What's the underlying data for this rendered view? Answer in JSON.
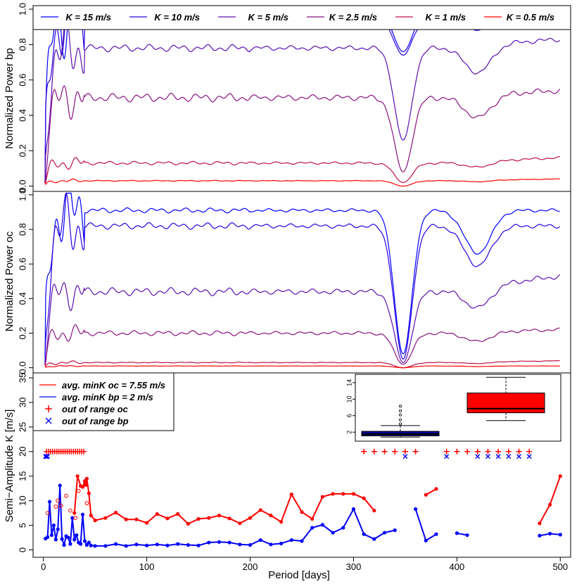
{
  "chart_data": [
    {
      "type": "line",
      "ylabel": "Normalized Power bp",
      "xlim": [
        -10,
        510
      ],
      "ylim": [
        -0.03,
        1.02
      ],
      "yticks": [
        "0.0",
        "0.2",
        "0.4",
        "0.6",
        "0.8",
        "1.0"
      ],
      "legend_position": "top",
      "series": [
        {
          "name": "K = 15 m/s",
          "color": "#0000ff",
          "plateau": 0.97,
          "dip": 0.76,
          "end": 0.98
        },
        {
          "name": "K = 10 m/s",
          "color": "#2a00e0",
          "plateau": 0.94,
          "dip": 0.74,
          "end": 0.95
        },
        {
          "name": "K = 5 m/s",
          "color": "#5a10b0",
          "plateau": 0.78,
          "dip": 0.26,
          "end": 0.83
        },
        {
          "name": "K = 2.5 m/s",
          "color": "#8a1080",
          "plateau": 0.5,
          "dip": 0.08,
          "end": 0.54
        },
        {
          "name": "K = 1 m/s",
          "color": "#c0104a",
          "plateau": 0.13,
          "dip": 0.02,
          "end": 0.16
        },
        {
          "name": "K = 0.5 m/s",
          "color": "#ff0000",
          "plateau": 0.03,
          "dip": 0.0,
          "end": 0.04
        }
      ]
    },
    {
      "type": "line",
      "ylabel": "Normalized Power oc",
      "xlim": [
        -10,
        510
      ],
      "ylim": [
        -0.03,
        1.02
      ],
      "yticks": [
        "0.0",
        "0.2",
        "0.4",
        "0.6",
        "0.8",
        "1.0"
      ],
      "series": [
        {
          "name": "K = 15 m/s",
          "color": "#0000ff",
          "plateau": 0.91,
          "dip": 0.08,
          "end": 0.91
        },
        {
          "name": "K = 10 m/s",
          "color": "#2a00e0",
          "plateau": 0.82,
          "dip": 0.05,
          "end": 0.82
        },
        {
          "name": "K = 5 m/s",
          "color": "#5a10b0",
          "plateau": 0.44,
          "dip": 0.03,
          "end": 0.53
        },
        {
          "name": "K = 2.5 m/s",
          "color": "#8a1080",
          "plateau": 0.2,
          "dip": 0.02,
          "end": 0.22
        },
        {
          "name": "K = 1 m/s",
          "color": "#c0104a",
          "plateau": 0.03,
          "dip": 0.0,
          "end": 0.04
        },
        {
          "name": "K = 0.5 m/s",
          "color": "#ff0000",
          "plateau": 0.01,
          "dip": 0.0,
          "end": 0.01
        }
      ]
    },
    {
      "type": "line",
      "xlabel": "Period [days]",
      "ylabel": "Semi−Amplitude K [m/s]",
      "xlim": [
        -10,
        510
      ],
      "ylim": [
        -1.5,
        36
      ],
      "xticks": [
        "0",
        "100",
        "200",
        "300",
        "400",
        "500"
      ],
      "yticks": [
        "0",
        "5",
        "10",
        "15",
        "20",
        "25",
        "30",
        "35"
      ],
      "legend_position": "top-left",
      "legend": [
        {
          "label": "avg. minK oc = 7.55 m/s",
          "symbol": "line",
          "color": "#ff0000"
        },
        {
          "label": "avg. minK bp = 2 m/s",
          "symbol": "line",
          "color": "#0000ff"
        },
        {
          "label": "out of range oc",
          "symbol": "+",
          "color": "#ff0000"
        },
        {
          "label": "out of range bp",
          "symbol": "x",
          "color": "#0000ff"
        }
      ],
      "oc_segments": [
        [
          [
            30,
            7.5
          ],
          [
            33,
            15
          ],
          [
            36,
            13
          ],
          [
            38,
            12.8
          ],
          [
            40,
            14
          ],
          [
            41,
            13.2
          ],
          [
            42,
            14.5
          ],
          [
            44,
            11.5
          ],
          [
            46,
            7
          ],
          [
            50,
            6
          ],
          [
            60,
            6.5
          ],
          [
            70,
            7.6
          ],
          [
            80,
            6.2
          ],
          [
            90,
            6.2
          ],
          [
            100,
            5.5
          ],
          [
            110,
            7.3
          ],
          [
            120,
            6.4
          ],
          [
            130,
            7.3
          ],
          [
            140,
            5.3
          ],
          [
            150,
            6.3
          ],
          [
            160,
            6.5
          ],
          [
            170,
            7
          ],
          [
            180,
            6.4
          ],
          [
            190,
            5.4
          ],
          [
            200,
            6.5
          ],
          [
            210,
            8.1
          ],
          [
            220,
            7
          ],
          [
            230,
            5.7
          ],
          [
            240,
            11.3
          ],
          [
            250,
            7.7
          ],
          [
            260,
            6.3
          ],
          [
            270,
            10.8
          ],
          [
            280,
            11.4
          ],
          [
            290,
            11.4
          ],
          [
            300,
            11.4
          ],
          [
            310,
            10.5
          ],
          [
            320,
            8
          ]
        ],
        [
          [
            370,
            11.2
          ],
          [
            380,
            12.4
          ]
        ],
        [
          [
            480,
            5.4
          ],
          [
            490,
            9.2
          ],
          [
            500,
            15
          ]
        ]
      ],
      "bp_segments": [
        [
          [
            2,
            2.3
          ],
          [
            4,
            2.6
          ],
          [
            6,
            9.8
          ],
          [
            8,
            3
          ],
          [
            10,
            5
          ],
          [
            12,
            2.1
          ],
          [
            14,
            4.2
          ],
          [
            16,
            13.1
          ],
          [
            18,
            2.2
          ],
          [
            20,
            1
          ],
          [
            22,
            2.8
          ],
          [
            24,
            2.5
          ],
          [
            26,
            1.2
          ],
          [
            28,
            6.5
          ],
          [
            30,
            2.1
          ],
          [
            32,
            3
          ],
          [
            34,
            1.5
          ],
          [
            36,
            1.2
          ],
          [
            38,
            7.2
          ],
          [
            40,
            1.8
          ],
          [
            42,
            1
          ],
          [
            44,
            1.5
          ],
          [
            46,
            0.9
          ],
          [
            50,
            0.8
          ],
          [
            60,
            0.8
          ],
          [
            70,
            1.2
          ],
          [
            80,
            0.8
          ],
          [
            90,
            1.1
          ],
          [
            100,
            0.9
          ],
          [
            110,
            1.1
          ],
          [
            120,
            0.9
          ],
          [
            130,
            1.2
          ],
          [
            140,
            1
          ],
          [
            150,
            0.9
          ],
          [
            160,
            1.5
          ],
          [
            170,
            1.6
          ],
          [
            180,
            1.5
          ],
          [
            190,
            1.1
          ],
          [
            200,
            1
          ],
          [
            210,
            2
          ],
          [
            220,
            1.1
          ],
          [
            230,
            1.3
          ],
          [
            240,
            2
          ],
          [
            250,
            1.8
          ],
          [
            260,
            4.5
          ],
          [
            270,
            5.1
          ],
          [
            280,
            3.5
          ],
          [
            290,
            4.5
          ],
          [
            300,
            8.3
          ],
          [
            310,
            3.2
          ],
          [
            320,
            2.2
          ],
          [
            330,
            3.5
          ],
          [
            340,
            4
          ]
        ],
        [
          [
            360,
            8.3
          ],
          [
            370,
            1.9
          ],
          [
            380,
            3.2
          ]
        ],
        [
          [
            400,
            3.4
          ],
          [
            410,
            3
          ]
        ],
        [
          [
            480,
            2.9
          ],
          [
            490,
            3.3
          ],
          [
            500,
            3.1
          ]
        ]
      ],
      "oc_open_points": [
        [
          4,
          7.5
        ],
        [
          12,
          8.8
        ],
        [
          14,
          10
        ],
        [
          17,
          9
        ],
        [
          22,
          11
        ],
        [
          26,
          8
        ],
        [
          31,
          6.5
        ],
        [
          34,
          12
        ],
        [
          42,
          9.5
        ]
      ],
      "out_of_range_oc": [
        3,
        5,
        7,
        9,
        11,
        13,
        15,
        17,
        19,
        21,
        23,
        25,
        27,
        29,
        31,
        33,
        35,
        37,
        39,
        310,
        320,
        330,
        340,
        350,
        360,
        390,
        400,
        410,
        420,
        430,
        440,
        450,
        460,
        470
      ],
      "out_of_range_oc_y": 20,
      "out_of_range_bp": [
        2,
        3,
        4,
        350,
        390,
        420,
        430,
        440,
        450,
        460,
        470
      ],
      "out_of_range_bp_y": 19,
      "inset": {
        "type": "boxplot",
        "yticks": [
          "2",
          "6",
          "10",
          "14"
        ],
        "ylim": [
          0.5,
          15
        ],
        "boxes": [
          {
            "color": "#00008b",
            "min": 0.8,
            "q1": 1.1,
            "median": 1.5,
            "q3": 2.2,
            "max": 3.6,
            "outliers": [
              4,
              5,
              6.2,
              7.2,
              8.3
            ]
          },
          {
            "color": "#ff0000",
            "min": 4.8,
            "q1": 6.7,
            "median": 7.7,
            "q3": 11.5,
            "max": 15.3,
            "outliers": []
          }
        ]
      }
    }
  ]
}
